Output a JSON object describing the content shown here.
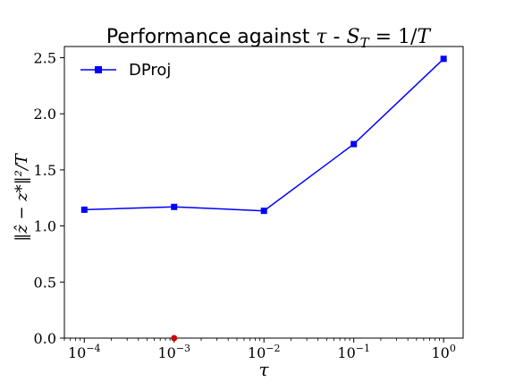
{
  "chart_data": {
    "type": "line",
    "title": {
      "prefix": "Performance against ",
      "tau": "τ",
      "separator": " - ",
      "math": "S",
      "math_sub": "T",
      "equals": " = 1/",
      "math_T": "T"
    },
    "xlabel": "τ",
    "ylabel": "‖ẑ − z*‖²/T",
    "x_scale": "log",
    "xlim": [
      6e-05,
      1.65
    ],
    "ylim": [
      0.0,
      2.6
    ],
    "x_ticks": [
      {
        "value": 0.0001,
        "base": "10",
        "exp": "−4"
      },
      {
        "value": 0.001,
        "base": "10",
        "exp": "−3"
      },
      {
        "value": 0.01,
        "base": "10",
        "exp": "−2"
      },
      {
        "value": 0.1,
        "base": "10",
        "exp": "−1"
      },
      {
        "value": 1,
        "base": "10",
        "exp": "0"
      }
    ],
    "y_ticks": [
      {
        "value": 0.0,
        "label": "0.0"
      },
      {
        "value": 0.5,
        "label": "0.5"
      },
      {
        "value": 1.0,
        "label": "1.0"
      },
      {
        "value": 1.5,
        "label": "1.5"
      },
      {
        "value": 2.0,
        "label": "2.0"
      },
      {
        "value": 2.5,
        "label": "2.5"
      }
    ],
    "series": [
      {
        "name": "DProj",
        "color": "#0000ff",
        "marker": "square",
        "x": [
          0.0001,
          0.001,
          0.01,
          0.1,
          1
        ],
        "y": [
          1.145,
          1.17,
          1.135,
          1.73,
          2.49
        ]
      }
    ],
    "annotations": [
      {
        "type": "point",
        "x": 0.001,
        "y": 0.0,
        "color": "#cc0000",
        "marker": "circle"
      }
    ],
    "legend_position": "top-left",
    "grid": false
  }
}
